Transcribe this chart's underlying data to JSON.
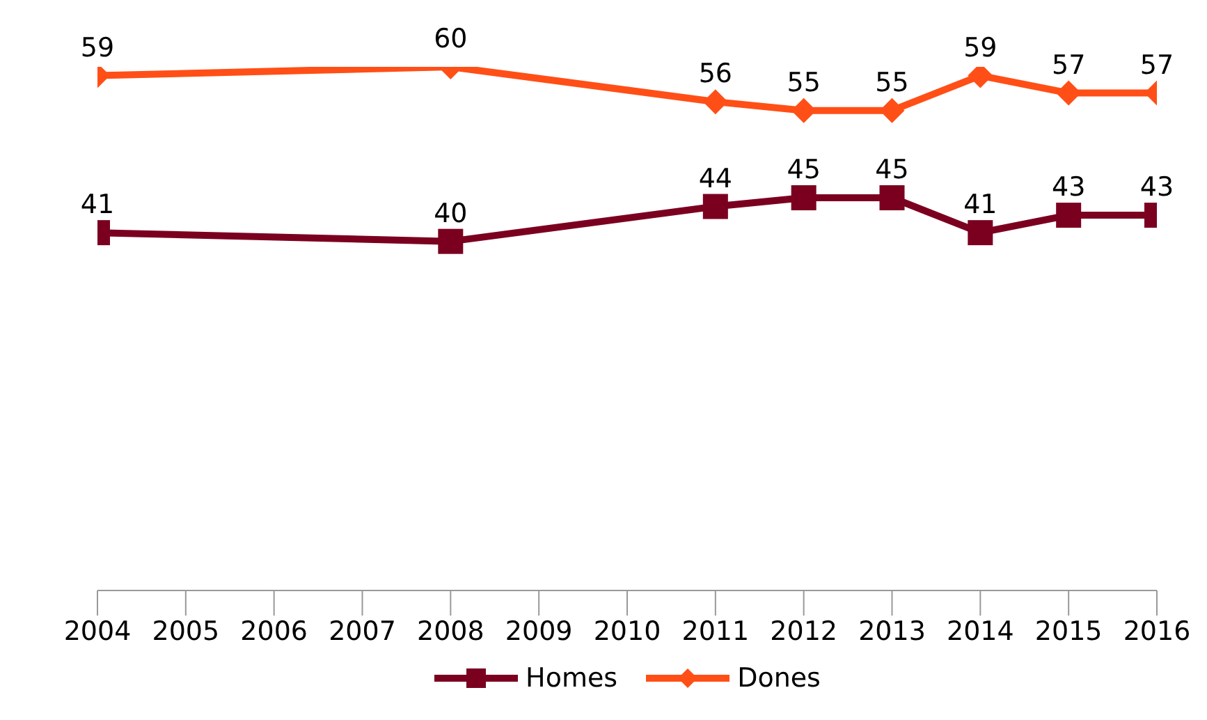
{
  "chart_data": {
    "type": "line",
    "x": [
      2004,
      2008,
      2011,
      2012,
      2013,
      2014,
      2015,
      2016
    ],
    "xlim": [
      2004,
      2016
    ],
    "xticks": [
      2004,
      2005,
      2006,
      2007,
      2008,
      2009,
      2010,
      2011,
      2012,
      2013,
      2014,
      2015,
      2016
    ],
    "tick_labels": "x",
    "series": [
      {
        "name": "Homes",
        "color": "#7b0020",
        "marker": "square",
        "values": [
          41,
          40,
          44,
          45,
          45,
          41,
          43,
          43
        ]
      },
      {
        "name": "Dones",
        "color": "#ff4f17",
        "marker": "diamond",
        "values": [
          59,
          60,
          56,
          55,
          55,
          59,
          57,
          57
        ]
      }
    ],
    "data_labels": true,
    "legend": "bottom",
    "grid": false
  }
}
